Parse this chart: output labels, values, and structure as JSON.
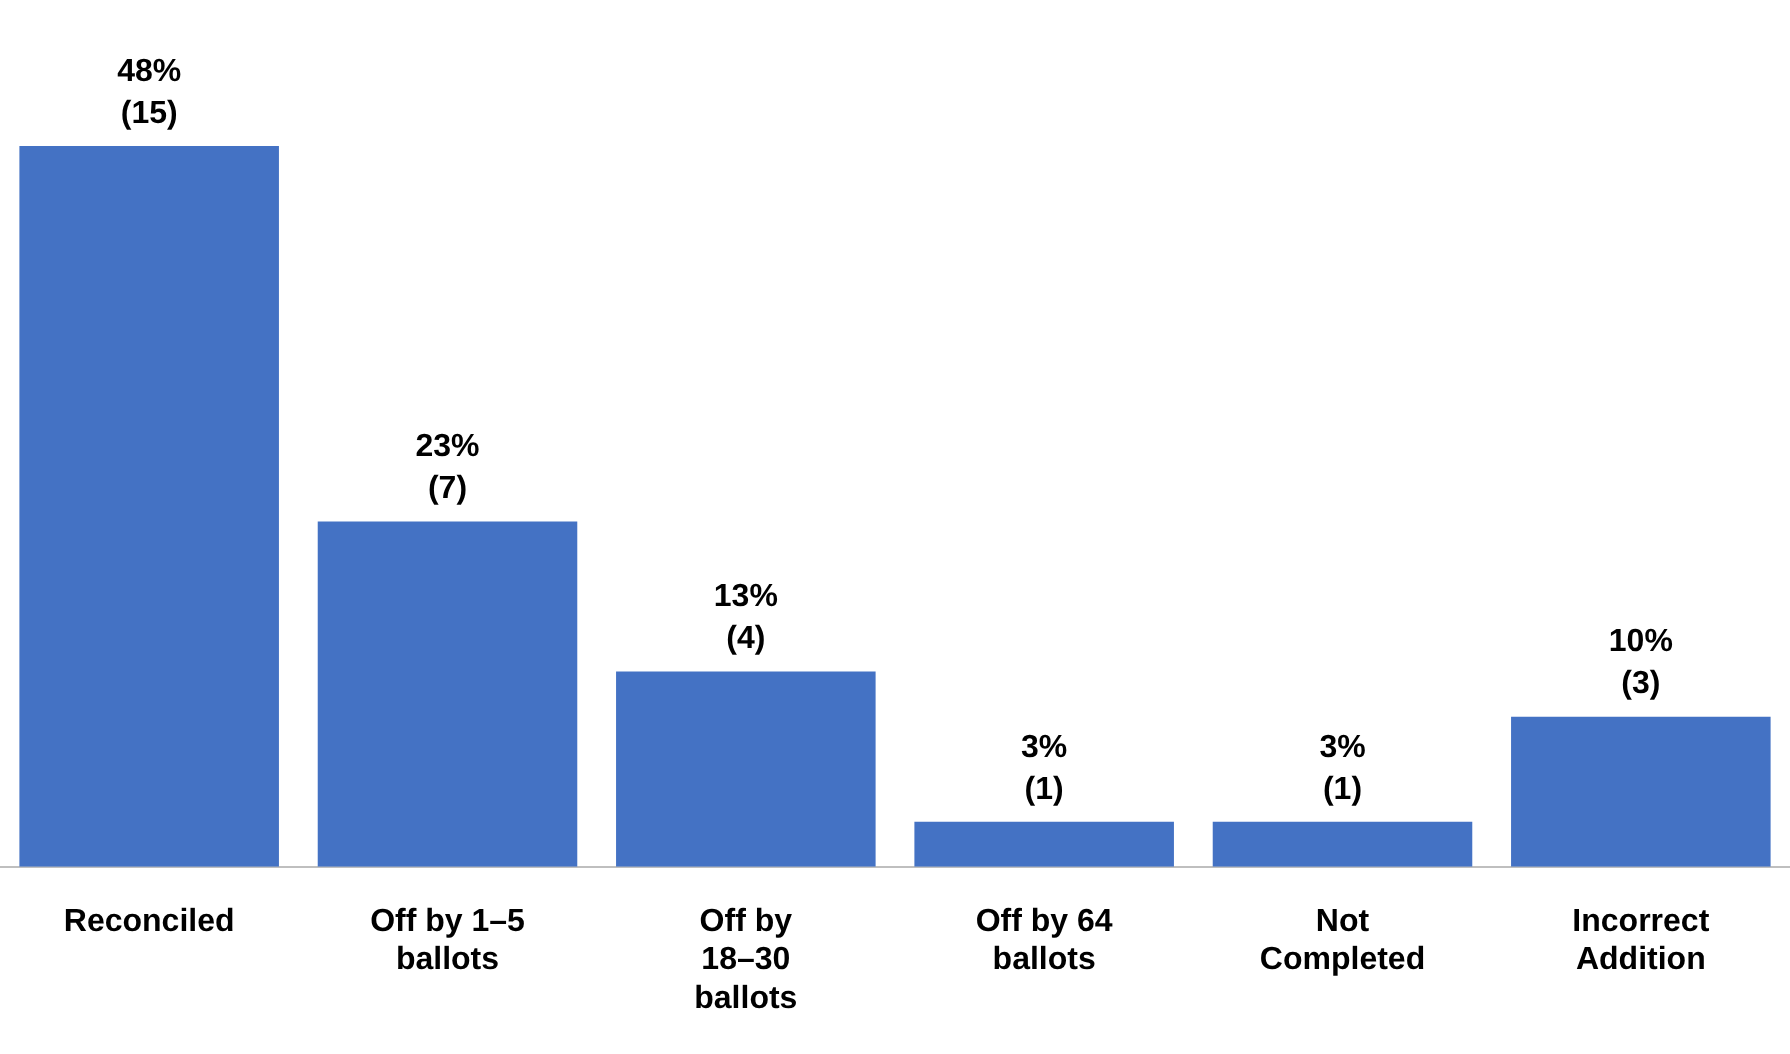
{
  "chart_data": {
    "type": "bar",
    "categories": [
      "Reconciled",
      "Off by 1–5 ballots",
      "Off by 18–30 ballots",
      "Off by 64 ballots",
      "Not Completed",
      "Incorrect Addition"
    ],
    "values": [
      48,
      23,
      13,
      3,
      3,
      10
    ],
    "value_labels": [
      "48%\n(15)",
      "23%\n(7)",
      "13%\n(4)",
      "3%\n(1)",
      "3%\n(1)",
      "10%\n(3)"
    ],
    "color": "#4472c4",
    "grid": false,
    "legend": false
  }
}
